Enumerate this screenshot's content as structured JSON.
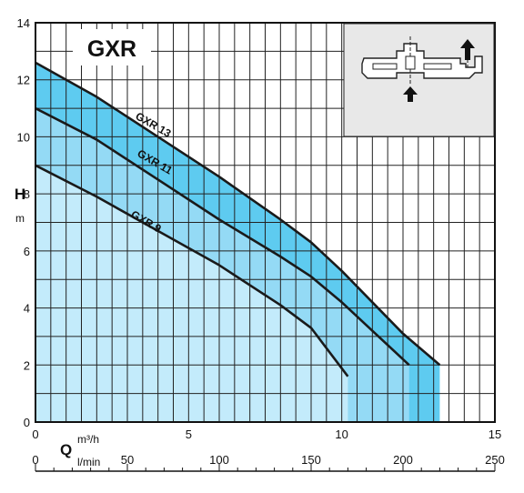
{
  "chart_data": {
    "type": "area",
    "title": "GXR",
    "ylabel": "H",
    "yunit": "m",
    "xlabel": "Q",
    "xunit_primary": "m³/h",
    "xunit_secondary": "l/min",
    "xlim": [
      0,
      15
    ],
    "ylim": [
      0,
      14
    ],
    "x_ticks": [
      0,
      5,
      10,
      15
    ],
    "y_ticks": [
      0,
      2,
      4,
      6,
      8,
      10,
      12,
      14
    ],
    "x2_ticks": [
      0,
      50,
      100,
      150,
      200,
      250
    ],
    "grid": true,
    "series": [
      {
        "name": "GXR 13",
        "color": "#5ecbf0",
        "x": [
          0,
          2,
          4,
          6,
          8,
          9,
          10,
          11,
          12,
          13.2
        ],
        "y": [
          12.6,
          11.4,
          10.0,
          8.6,
          7.1,
          6.3,
          5.3,
          4.2,
          3.1,
          2.0
        ],
        "x_max": 13.2
      },
      {
        "name": "GXR 11",
        "color": "#94daf5",
        "x": [
          0,
          2,
          4,
          6,
          8,
          9,
          10,
          11,
          12.2
        ],
        "y": [
          11.0,
          9.9,
          8.5,
          7.1,
          5.8,
          5.1,
          4.2,
          3.2,
          2.0
        ],
        "x_max": 12.2
      },
      {
        "name": "GXR 9",
        "color": "#c3ebfb",
        "x": [
          0,
          2,
          4,
          6,
          8,
          9,
          10.2
        ],
        "y": [
          9.0,
          7.9,
          6.7,
          5.5,
          4.1,
          3.3,
          1.6
        ],
        "x_max": 10.2
      }
    ]
  }
}
